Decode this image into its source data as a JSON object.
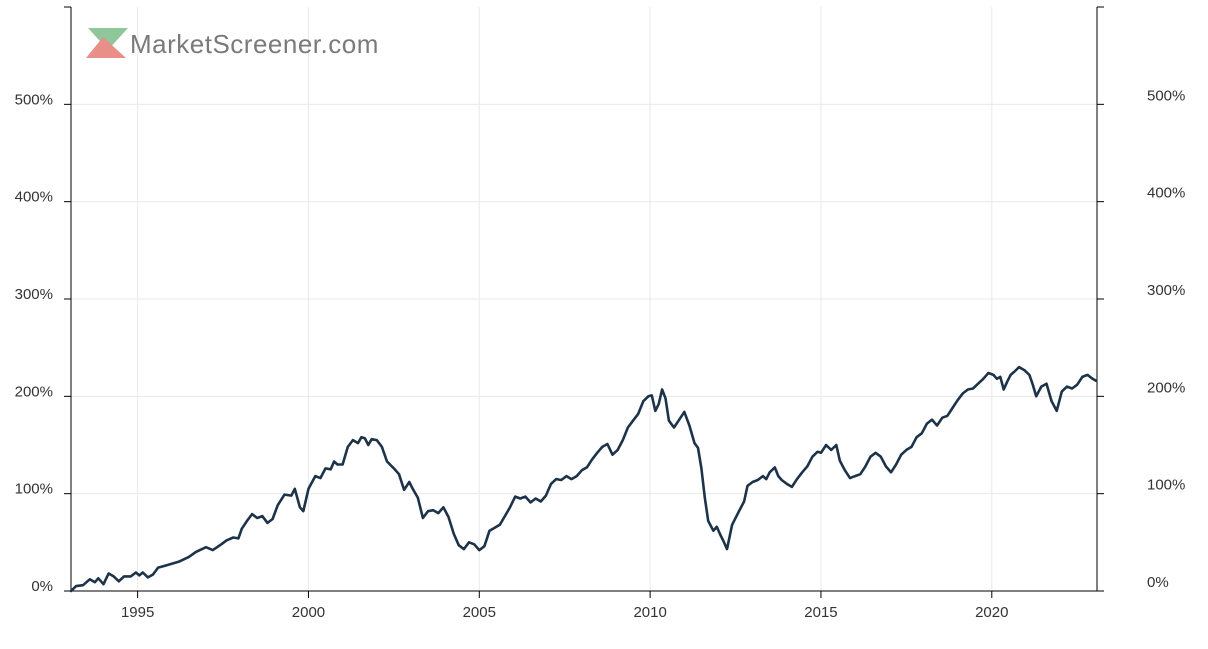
{
  "logo": {
    "text": "MarketScreener.com",
    "green": "#8fc79a",
    "red": "#e88f88"
  },
  "colors": {
    "line": "#1d3349",
    "grid": "#e9e9e9",
    "axis": "#000000",
    "text": "#333333"
  },
  "chart_data": {
    "type": "line",
    "title": "",
    "xlabel": "",
    "ylabel": "",
    "xlim": [
      1993.05,
      2023.05
    ],
    "ylim": [
      0,
      600
    ],
    "x_ticks": [
      {
        "value": 1995,
        "label": "1995"
      },
      {
        "value": 2000,
        "label": "2000"
      },
      {
        "value": 2005,
        "label": "2005"
      },
      {
        "value": 2010,
        "label": "2010"
      },
      {
        "value": 2015,
        "label": "2015"
      },
      {
        "value": 2020,
        "label": "2020"
      }
    ],
    "y_ticks": [
      {
        "value": 0,
        "label": "0%"
      },
      {
        "value": 100,
        "label": "100%"
      },
      {
        "value": 200,
        "label": "200%"
      },
      {
        "value": 300,
        "label": "300%"
      },
      {
        "value": 400,
        "label": "400%"
      },
      {
        "value": 500,
        "label": "500%"
      }
    ],
    "grid": true,
    "legend": "none",
    "series": [
      {
        "values": [
          [
            1993.05,
            0
          ],
          [
            1993.2,
            5
          ],
          [
            1993.4,
            6
          ],
          [
            1993.6,
            12
          ],
          [
            1993.75,
            9
          ],
          [
            1993.85,
            13
          ],
          [
            1994.0,
            7
          ],
          [
            1994.15,
            18
          ],
          [
            1994.3,
            15
          ],
          [
            1994.45,
            10
          ],
          [
            1994.6,
            15
          ],
          [
            1994.8,
            15
          ],
          [
            1994.95,
            19
          ],
          [
            1995.05,
            16
          ],
          [
            1995.15,
            19
          ],
          [
            1995.3,
            14
          ],
          [
            1995.45,
            17
          ],
          [
            1995.6,
            24
          ],
          [
            1995.8,
            26
          ],
          [
            1996.0,
            28
          ],
          [
            1996.2,
            30
          ],
          [
            1996.5,
            35
          ],
          [
            1996.7,
            40
          ],
          [
            1997.0,
            45
          ],
          [
            1997.2,
            42
          ],
          [
            1997.45,
            48
          ],
          [
            1997.6,
            52
          ],
          [
            1997.8,
            55
          ],
          [
            1997.95,
            54
          ],
          [
            1998.05,
            64
          ],
          [
            1998.2,
            72
          ],
          [
            1998.35,
            79
          ],
          [
            1998.5,
            75
          ],
          [
            1998.65,
            77
          ],
          [
            1998.8,
            70
          ],
          [
            1998.95,
            74
          ],
          [
            1999.1,
            88
          ],
          [
            1999.3,
            99
          ],
          [
            1999.5,
            98
          ],
          [
            1999.6,
            105
          ],
          [
            1999.75,
            86
          ],
          [
            1999.85,
            82
          ],
          [
            2000.0,
            105
          ],
          [
            2000.2,
            118
          ],
          [
            2000.35,
            116
          ],
          [
            2000.5,
            126
          ],
          [
            2000.65,
            125
          ],
          [
            2000.75,
            133
          ],
          [
            2000.85,
            130
          ],
          [
            2001.0,
            130
          ],
          [
            2001.15,
            148
          ],
          [
            2001.3,
            155
          ],
          [
            2001.45,
            152
          ],
          [
            2001.55,
            158
          ],
          [
            2001.65,
            157
          ],
          [
            2001.75,
            150
          ],
          [
            2001.85,
            156
          ],
          [
            2002.0,
            155
          ],
          [
            2002.15,
            148
          ],
          [
            2002.3,
            133
          ],
          [
            2002.5,
            126
          ],
          [
            2002.65,
            120
          ],
          [
            2002.8,
            104
          ],
          [
            2002.95,
            112
          ],
          [
            2003.05,
            105
          ],
          [
            2003.2,
            96
          ],
          [
            2003.35,
            75
          ],
          [
            2003.5,
            82
          ],
          [
            2003.65,
            83
          ],
          [
            2003.8,
            80
          ],
          [
            2003.95,
            86
          ],
          [
            2004.1,
            76
          ],
          [
            2004.25,
            59
          ],
          [
            2004.4,
            47
          ],
          [
            2004.55,
            43
          ],
          [
            2004.7,
            50
          ],
          [
            2004.85,
            48
          ],
          [
            2005.0,
            42
          ],
          [
            2005.15,
            46
          ],
          [
            2005.3,
            62
          ],
          [
            2005.45,
            65
          ],
          [
            2005.6,
            68
          ],
          [
            2005.75,
            77
          ],
          [
            2005.9,
            86
          ],
          [
            2006.05,
            97
          ],
          [
            2006.2,
            95
          ],
          [
            2006.35,
            97
          ],
          [
            2006.5,
            91
          ],
          [
            2006.65,
            95
          ],
          [
            2006.8,
            92
          ],
          [
            2006.95,
            98
          ],
          [
            2007.1,
            110
          ],
          [
            2007.25,
            115
          ],
          [
            2007.4,
            114
          ],
          [
            2007.55,
            118
          ],
          [
            2007.7,
            115
          ],
          [
            2007.85,
            118
          ],
          [
            2008.0,
            124
          ],
          [
            2008.15,
            127
          ],
          [
            2008.3,
            135
          ],
          [
            2008.45,
            142
          ],
          [
            2008.6,
            148
          ],
          [
            2008.75,
            151
          ],
          [
            2008.9,
            140
          ],
          [
            2009.05,
            145
          ],
          [
            2009.2,
            155
          ],
          [
            2009.35,
            168
          ],
          [
            2009.5,
            175
          ],
          [
            2009.65,
            182
          ],
          [
            2009.8,
            195
          ],
          [
            2009.95,
            200
          ],
          [
            2010.05,
            201
          ],
          [
            2010.15,
            185
          ],
          [
            2010.25,
            192
          ],
          [
            2010.35,
            207
          ],
          [
            2010.45,
            198
          ],
          [
            2010.55,
            175
          ],
          [
            2010.7,
            168
          ],
          [
            2010.85,
            176
          ],
          [
            2011.0,
            184
          ],
          [
            2011.15,
            170
          ],
          [
            2011.3,
            152
          ],
          [
            2011.4,
            147
          ],
          [
            2011.5,
            126
          ],
          [
            2011.6,
            96
          ],
          [
            2011.7,
            72
          ],
          [
            2011.85,
            62
          ],
          [
            2011.95,
            66
          ],
          [
            2012.05,
            58
          ],
          [
            2012.15,
            51
          ],
          [
            2012.25,
            43
          ],
          [
            2012.4,
            68
          ],
          [
            2012.6,
            82
          ],
          [
            2012.75,
            92
          ],
          [
            2012.85,
            108
          ],
          [
            2013.0,
            112
          ],
          [
            2013.15,
            114
          ],
          [
            2013.3,
            118
          ],
          [
            2013.4,
            115
          ],
          [
            2013.5,
            122
          ],
          [
            2013.65,
            127
          ],
          [
            2013.75,
            118
          ],
          [
            2013.85,
            114
          ],
          [
            2014.0,
            110
          ],
          [
            2014.15,
            107
          ],
          [
            2014.3,
            115
          ],
          [
            2014.45,
            122
          ],
          [
            2014.6,
            128
          ],
          [
            2014.75,
            138
          ],
          [
            2014.9,
            143
          ],
          [
            2015.0,
            142
          ],
          [
            2015.15,
            150
          ],
          [
            2015.3,
            145
          ],
          [
            2015.45,
            150
          ],
          [
            2015.55,
            134
          ],
          [
            2015.7,
            124
          ],
          [
            2015.85,
            116
          ],
          [
            2016.0,
            118
          ],
          [
            2016.15,
            120
          ],
          [
            2016.3,
            128
          ],
          [
            2016.45,
            138
          ],
          [
            2016.6,
            142
          ],
          [
            2016.75,
            138
          ],
          [
            2016.9,
            128
          ],
          [
            2017.05,
            122
          ],
          [
            2017.2,
            130
          ],
          [
            2017.35,
            140
          ],
          [
            2017.5,
            145
          ],
          [
            2017.65,
            148
          ],
          [
            2017.8,
            158
          ],
          [
            2017.95,
            162
          ],
          [
            2018.1,
            172
          ],
          [
            2018.25,
            176
          ],
          [
            2018.4,
            170
          ],
          [
            2018.55,
            178
          ],
          [
            2018.7,
            180
          ],
          [
            2018.85,
            188
          ],
          [
            2019.0,
            196
          ],
          [
            2019.15,
            203
          ],
          [
            2019.3,
            207
          ],
          [
            2019.45,
            208
          ],
          [
            2019.6,
            213
          ],
          [
            2019.75,
            218
          ],
          [
            2019.9,
            224
          ],
          [
            2020.05,
            222
          ],
          [
            2020.15,
            218
          ],
          [
            2020.25,
            220
          ],
          [
            2020.35,
            207
          ],
          [
            2020.45,
            215
          ],
          [
            2020.55,
            222
          ],
          [
            2020.65,
            225
          ],
          [
            2020.8,
            230
          ],
          [
            2020.95,
            227
          ],
          [
            2021.1,
            222
          ],
          [
            2021.2,
            212
          ],
          [
            2021.3,
            200
          ],
          [
            2021.45,
            210
          ],
          [
            2021.6,
            213
          ],
          [
            2021.75,
            195
          ],
          [
            2021.9,
            185
          ],
          [
            2022.05,
            205
          ],
          [
            2022.2,
            210
          ],
          [
            2022.35,
            208
          ],
          [
            2022.5,
            212
          ],
          [
            2022.65,
            220
          ],
          [
            2022.8,
            222
          ],
          [
            2022.95,
            218
          ],
          [
            2023.05,
            216
          ]
        ]
      }
    ]
  }
}
